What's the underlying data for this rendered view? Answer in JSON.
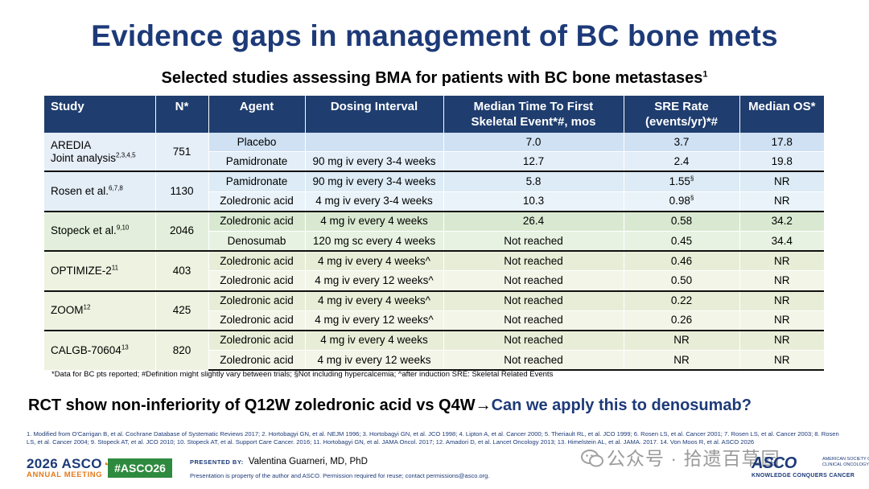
{
  "header": {
    "title": "Evidence gaps in management of BC bone mets",
    "subtitle": "Selected studies assessing BMA for patients with BC bone metastases",
    "subtitle_sup": "1"
  },
  "table": {
    "columns": [
      {
        "line1": "Study",
        "line2": ""
      },
      {
        "line1": "N*",
        "line2": ""
      },
      {
        "line1": "Agent",
        "line2": ""
      },
      {
        "line1": "Dosing Interval",
        "line2": ""
      },
      {
        "line1": "Median Time To First",
        "line2": "Skeletal Event*#, mos"
      },
      {
        "line1": "SRE Rate",
        "line2": "(events/yr)*#"
      },
      {
        "line1": "Median OS*",
        "line2": ""
      }
    ],
    "groups": [
      {
        "study": "AREDIA",
        "study_line2": "Joint analysis",
        "study_sup": "2,3,4,5",
        "n": "751",
        "rows": [
          {
            "agent": "Placebo",
            "dosing": "",
            "ttfse": "7.0",
            "sre": "3.7",
            "sre_sup": "",
            "os": "17.8"
          },
          {
            "agent": "Pamidronate",
            "dosing": "90 mg iv every 3-4 weeks",
            "ttfse": "12.7",
            "sre": "2.4",
            "sre_sup": "",
            "os": "19.8"
          }
        ]
      },
      {
        "study": "Rosen et al.",
        "study_line2": "",
        "study_sup": "6,7,8",
        "n": "1130",
        "rows": [
          {
            "agent": "Pamidronate",
            "dosing": "90 mg iv every 3-4 weeks",
            "ttfse": "5.8",
            "sre": "1.55",
            "sre_sup": "§",
            "os": "NR"
          },
          {
            "agent": "Zoledronic acid",
            "dosing": "4 mg iv every 3-4 weeks",
            "ttfse": "10.3",
            "sre": "0.98",
            "sre_sup": "§",
            "os": "NR"
          }
        ]
      },
      {
        "study": "Stopeck et al.",
        "study_line2": "",
        "study_sup": "9,10",
        "n": "2046",
        "rows": [
          {
            "agent": "Zoledronic acid",
            "dosing": "4 mg iv every 4 weeks",
            "ttfse": "26.4",
            "sre": "0.58",
            "sre_sup": "",
            "os": "34.2"
          },
          {
            "agent": "Denosumab",
            "dosing": "120 mg sc every 4 weeks",
            "ttfse": "Not reached",
            "sre": "0.45",
            "sre_sup": "",
            "os": "34.4"
          }
        ]
      },
      {
        "study": "OPTIMIZE-2",
        "study_line2": "",
        "study_sup": "11",
        "n": "403",
        "rows": [
          {
            "agent": "Zoledronic acid",
            "dosing": "4 mg iv every 4 weeks^",
            "ttfse": "Not reached",
            "sre": "0.46",
            "sre_sup": "",
            "os": "NR"
          },
          {
            "agent": "Zoledronic acid",
            "dosing": "4 mg iv every 12 weeks^",
            "ttfse": "Not reached",
            "sre": "0.50",
            "sre_sup": "",
            "os": "NR"
          }
        ]
      },
      {
        "study": "ZOOM",
        "study_line2": "",
        "study_sup": "12",
        "n": "425",
        "rows": [
          {
            "agent": "Zoledronic acid",
            "dosing": "4 mg iv every 4 weeks^",
            "ttfse": "Not reached",
            "sre": "0.22",
            "sre_sup": "",
            "os": "NR"
          },
          {
            "agent": "Zoledronic acid",
            "dosing": "4 mg iv every 12 weeks^",
            "ttfse": "Not reached",
            "sre": "0.26",
            "sre_sup": "",
            "os": "NR"
          }
        ]
      },
      {
        "study": "CALGB-70604",
        "study_line2": "",
        "study_sup": "13",
        "n": "820",
        "rows": [
          {
            "agent": "Zoledronic acid",
            "dosing": "4 mg iv every 4 weeks",
            "ttfse": "Not reached",
            "sre": "NR",
            "sre_sup": "",
            "os": "NR"
          },
          {
            "agent": "Zoledronic acid",
            "dosing": "4 mg iv every 12 weeks",
            "ttfse": "Not reached",
            "sre": "NR",
            "sre_sup": "",
            "os": "NR"
          }
        ]
      }
    ]
  },
  "footnote": "*Data for BC pts reported;  #Definition might slightly vary between trials; §Not including hypercalcemia; ^after induction SRE: Skeletal Related Events",
  "conclusion": {
    "statement": "RCT show non-inferiority of Q12W zoledronic acid vs Q4W",
    "arrow": "→",
    "question": "Can we apply this to denosumab?"
  },
  "references": "1. Modified from O'Carrigan B, et al. Cochrane Database of Systematic Reviews 2017; 2. Hortobagyi GN, et al. NEJM 1996;  3. Hortobagyi GN, et al. JCO 1998; 4. Lipton A, et al. Cancer 2000;  5. Theriault RL, et al. JCO 1999; 6. Rosen LS, et al. Cancer 2001; 7. Rosen LS, et al. Cancer 2003; 8. Rosen LS, et al. Cancer 2004; 9. Stopeck AT, et al. JCO 2010; 10. Stopeck AT, et al. Support Care Cancer. 2016; 11. Hortobagyi GN, et al. JAMA Oncol. 2017; 12. Amadori D, et al. Lancet Oncology 2013; 13. Himelstein AL, et al. JAMA. 2017. 14. Von Moos R, et al. ASCO 2026",
  "footer": {
    "logo_year": "2026",
    "logo_name": "ASCO",
    "logo_meeting": "ANNUAL MEETING",
    "hashtag": "#ASCO26",
    "presented_by_label": "PRESENTED BY:",
    "presenter": "Valentina Guarneri, MD, PhD",
    "property_note": "Presentation is property of the author and ASCO. Permission required for reuse; contact permissions@asco.org.",
    "watermark": "公众号 · 拾遗百草园",
    "asco_word": "ASCO",
    "asco_society": "AMERICAN SOCIETY OF CLINICAL ONCOLOGY",
    "asco_tagline": "KNOWLEDGE CONQUERS CANCER"
  },
  "colors": {
    "title": "#1d3a78",
    "table_header": "#1f3d6e",
    "hashtag_bg": "#2e8a3e",
    "asco_orange": "#e27b1c"
  }
}
